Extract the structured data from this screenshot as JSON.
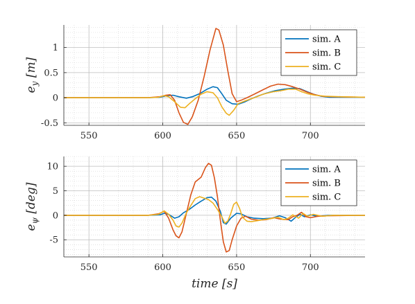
{
  "chart_data": [
    {
      "type": "line",
      "ylabel": "e_y [m]",
      "xlabel": "",
      "xlim": [
        533,
        737
      ],
      "ylim": [
        -0.55,
        1.45
      ],
      "xticks": [
        550,
        600,
        650,
        700
      ],
      "yticks": [
        -0.5,
        0,
        0.5,
        1
      ],
      "ytick_labels": [
        "-0.5",
        "0",
        "0.5",
        "1"
      ],
      "grid": true,
      "minor_grid": true,
      "legend_position": "top-right",
      "series": [
        {
          "name": "sim. A",
          "color": "#0072BD",
          "points": [
            [
              533,
              0
            ],
            [
              560,
              0
            ],
            [
              590,
              0
            ],
            [
              598,
              0.01
            ],
            [
              603,
              0.04
            ],
            [
              607,
              0.05
            ],
            [
              611,
              0.02
            ],
            [
              616,
              -0.01
            ],
            [
              620,
              0.02
            ],
            [
              625,
              0.08
            ],
            [
              630,
              0.17
            ],
            [
              634,
              0.22
            ],
            [
              637,
              0.2
            ],
            [
              640,
              0.08
            ],
            [
              643,
              -0.05
            ],
            [
              647,
              -0.12
            ],
            [
              651,
              -0.13
            ],
            [
              655,
              -0.09
            ],
            [
              660,
              -0.02
            ],
            [
              665,
              0.04
            ],
            [
              670,
              0.09
            ],
            [
              676,
              0.14
            ],
            [
              682,
              0.17
            ],
            [
              688,
              0.19
            ],
            [
              693,
              0.18
            ],
            [
              697,
              0.13
            ],
            [
              702,
              0.07
            ],
            [
              707,
              0.03
            ],
            [
              713,
              0.01
            ],
            [
              720,
              0.01
            ],
            [
              737,
              0.01
            ]
          ]
        },
        {
          "name": "sim. B",
          "color": "#D95319",
          "points": [
            [
              533,
              0
            ],
            [
              560,
              0
            ],
            [
              590,
              0
            ],
            [
              598,
              0.02
            ],
            [
              602,
              0.05
            ],
            [
              605,
              0.06
            ],
            [
              608,
              -0.05
            ],
            [
              611,
              -0.3
            ],
            [
              614,
              -0.49
            ],
            [
              617,
              -0.53
            ],
            [
              620,
              -0.38
            ],
            [
              624,
              -0.05
            ],
            [
              628,
              0.42
            ],
            [
              632,
              0.95
            ],
            [
              636,
              1.38
            ],
            [
              638,
              1.35
            ],
            [
              641,
              1.05
            ],
            [
              644,
              0.55
            ],
            [
              647,
              0.08
            ],
            [
              650,
              -0.08
            ],
            [
              653,
              -0.05
            ],
            [
              657,
              0.0
            ],
            [
              662,
              0.07
            ],
            [
              668,
              0.16
            ],
            [
              673,
              0.23
            ],
            [
              678,
              0.27
            ],
            [
              683,
              0.26
            ],
            [
              688,
              0.22
            ],
            [
              693,
              0.17
            ],
            [
              698,
              0.11
            ],
            [
              703,
              0.06
            ],
            [
              708,
              0.03
            ],
            [
              715,
              0.02
            ],
            [
              737,
              0.01
            ]
          ]
        },
        {
          "name": "sim. C",
          "color": "#EDB120",
          "points": [
            [
              533,
              0
            ],
            [
              560,
              0
            ],
            [
              590,
              0
            ],
            [
              597,
              0.01
            ],
            [
              601,
              0.04
            ],
            [
              604,
              0.02
            ],
            [
              608,
              -0.08
            ],
            [
              612,
              -0.19
            ],
            [
              615,
              -0.2
            ],
            [
              618,
              -0.12
            ],
            [
              622,
              -0.02
            ],
            [
              626,
              0.07
            ],
            [
              630,
              0.12
            ],
            [
              634,
              0.1
            ],
            [
              637,
              0.0
            ],
            [
              640,
              -0.18
            ],
            [
              643,
              -0.31
            ],
            [
              645,
              -0.35
            ],
            [
              648,
              -0.25
            ],
            [
              651,
              -0.12
            ],
            [
              656,
              -0.06
            ],
            [
              662,
              0.0
            ],
            [
              668,
              0.07
            ],
            [
              675,
              0.12
            ],
            [
              680,
              0.14
            ],
            [
              685,
              0.17
            ],
            [
              690,
              0.17
            ],
            [
              694,
              0.12
            ],
            [
              698,
              0.08
            ],
            [
              703,
              0.05
            ],
            [
              710,
              0.03
            ],
            [
              720,
              0.02
            ],
            [
              737,
              0.01
            ]
          ]
        }
      ]
    },
    {
      "type": "line",
      "ylabel": "e_ψ [deg]",
      "xlabel": "time [s]",
      "xlim": [
        533,
        737
      ],
      "ylim": [
        -8.5,
        12
      ],
      "xticks": [
        550,
        600,
        650,
        700
      ],
      "yticks": [
        -5,
        0,
        5,
        10
      ],
      "ytick_labels": [
        "-5",
        "0",
        "5",
        "10"
      ],
      "grid": true,
      "minor_grid": true,
      "legend_position": "top-right",
      "series": [
        {
          "name": "sim. A",
          "color": "#0072BD",
          "points": [
            [
              533,
              0
            ],
            [
              590,
              0
            ],
            [
              598,
              0.1
            ],
            [
              601,
              0.4
            ],
            [
              604,
              0.2
            ],
            [
              608,
              -0.6
            ],
            [
              611,
              -0.3
            ],
            [
              614,
              0.5
            ],
            [
              618,
              1.2
            ],
            [
              622,
              2.1
            ],
            [
              626,
              2.9
            ],
            [
              630,
              3.6
            ],
            [
              633,
              3.7
            ],
            [
              636,
              2.9
            ],
            [
              639,
              0.8
            ],
            [
              641,
              -1.5
            ],
            [
              643,
              -1.8
            ],
            [
              646,
              -0.6
            ],
            [
              650,
              0.4
            ],
            [
              653,
              0.3
            ],
            [
              657,
              -0.3
            ],
            [
              662,
              -0.6
            ],
            [
              668,
              -0.7
            ],
            [
              674,
              -0.6
            ],
            [
              679,
              -0.1
            ],
            [
              683,
              -0.5
            ],
            [
              687,
              -1.2
            ],
            [
              690,
              -0.4
            ],
            [
              693,
              0.2
            ],
            [
              696,
              -0.3
            ],
            [
              700,
              0.1
            ],
            [
              705,
              -0.2
            ],
            [
              712,
              0.0
            ],
            [
              737,
              0.0
            ]
          ]
        },
        {
          "name": "sim. B",
          "color": "#D95319",
          "points": [
            [
              533,
              0
            ],
            [
              590,
              0
            ],
            [
              597,
              0.3
            ],
            [
              601,
              0.8
            ],
            [
              604,
              -0.6
            ],
            [
              607,
              -3.0
            ],
            [
              609,
              -4.2
            ],
            [
              611,
              -4.6
            ],
            [
              613,
              -3.4
            ],
            [
              616,
              0.4
            ],
            [
              619,
              4.2
            ],
            [
              622,
              6.8
            ],
            [
              626,
              7.8
            ],
            [
              629,
              9.8
            ],
            [
              631,
              10.6
            ],
            [
              633,
              10.2
            ],
            [
              635,
              7.6
            ],
            [
              637,
              3.8
            ],
            [
              639,
              -1.0
            ],
            [
              641,
              -5.4
            ],
            [
              643,
              -7.5
            ],
            [
              645,
              -7.2
            ],
            [
              647,
              -5.0
            ],
            [
              650,
              -2.2
            ],
            [
              653,
              -0.6
            ],
            [
              656,
              -0.2
            ],
            [
              660,
              -0.8
            ],
            [
              665,
              -1.0
            ],
            [
              670,
              -0.9
            ],
            [
              675,
              -0.5
            ],
            [
              680,
              -0.8
            ],
            [
              685,
              -0.9
            ],
            [
              688,
              -0.3
            ],
            [
              691,
              0.0
            ],
            [
              694,
              0.6
            ],
            [
              697,
              -0.3
            ],
            [
              700,
              -0.5
            ],
            [
              705,
              -0.2
            ],
            [
              712,
              -0.1
            ],
            [
              737,
              0.0
            ]
          ]
        },
        {
          "name": "sim. C",
          "color": "#EDB120",
          "points": [
            [
              533,
              0
            ],
            [
              590,
              0
            ],
            [
              597,
              0.2
            ],
            [
              601,
              0.9
            ],
            [
              604,
              0.2
            ],
            [
              607,
              -1.0
            ],
            [
              609,
              -2.2
            ],
            [
              611,
              -2.4
            ],
            [
              613,
              -1.6
            ],
            [
              616,
              0.5
            ],
            [
              619,
              2.0
            ],
            [
              622,
              3.4
            ],
            [
              625,
              3.8
            ],
            [
              628,
              3.5
            ],
            [
              631,
              3.2
            ],
            [
              634,
              2.5
            ],
            [
              637,
              1.2
            ],
            [
              640,
              -0.3
            ],
            [
              642,
              -1.6
            ],
            [
              644,
              -1.2
            ],
            [
              646,
              0.3
            ],
            [
              648,
              2.2
            ],
            [
              650,
              2.7
            ],
            [
              652,
              1.4
            ],
            [
              654,
              -0.4
            ],
            [
              657,
              -1.2
            ],
            [
              660,
              -1.3
            ],
            [
              664,
              -1.1
            ],
            [
              668,
              -0.9
            ],
            [
              673,
              -0.7
            ],
            [
              678,
              -0.4
            ],
            [
              682,
              -0.9
            ],
            [
              685,
              -0.6
            ],
            [
              688,
              0.1
            ],
            [
              692,
              -0.6
            ],
            [
              695,
              0.4
            ],
            [
              698,
              -0.2
            ],
            [
              702,
              0.2
            ],
            [
              708,
              -0.2
            ],
            [
              715,
              0.0
            ],
            [
              737,
              0.0
            ]
          ]
        }
      ]
    }
  ]
}
